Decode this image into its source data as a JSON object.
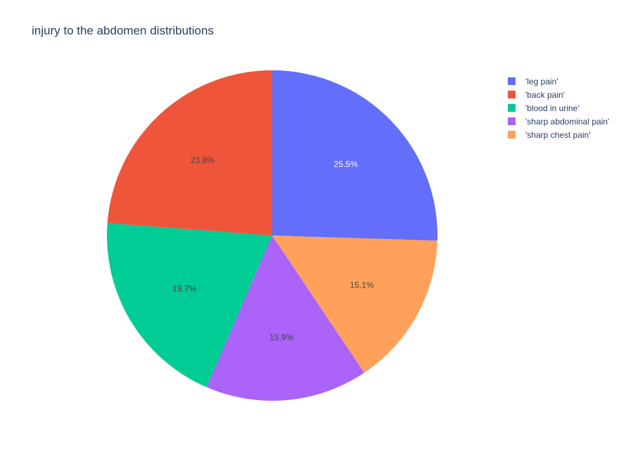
{
  "chart_data": {
    "type": "pie",
    "title": "injury to the abdomen distributions",
    "slices": [
      {
        "label": "'leg pain'",
        "value": 25.5,
        "text": "25.5%",
        "color": "#636efa",
        "text_color": "#ffffff"
      },
      {
        "label": "'sharp chest pain'",
        "value": 15.1,
        "text": "15.1%",
        "color": "#ffa15a",
        "text_color": "#444444"
      },
      {
        "label": "'sharp abdominal pain'",
        "value": 15.9,
        "text": "15.9%",
        "color": "#ab63fa",
        "text_color": "#444444"
      },
      {
        "label": "'blood in urine'",
        "value": 19.7,
        "text": "19.7%",
        "color": "#00cc96",
        "text_color": "#444444"
      },
      {
        "label": "'back pain'",
        "value": 23.8,
        "text": "23.8%",
        "color": "#ef553b",
        "text_color": "#444444"
      }
    ],
    "legend": [
      {
        "label": "'leg pain'",
        "color": "#636efa"
      },
      {
        "label": "'back pain'",
        "color": "#ef553b"
      },
      {
        "label": "'blood in urine'",
        "color": "#00cc96"
      },
      {
        "label": "'sharp abdominal pain'",
        "color": "#ab63fa"
      },
      {
        "label": "'sharp chest pain'",
        "color": "#ffa15a"
      }
    ],
    "legend_position": "top-right",
    "direction": "clockwise",
    "start": "top"
  }
}
